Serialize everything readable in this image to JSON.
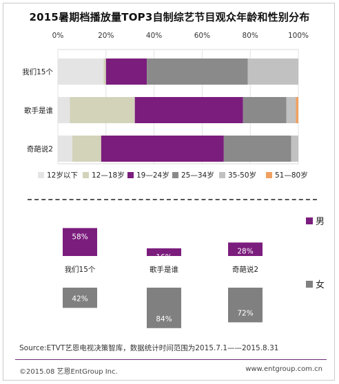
{
  "title": "2015暑期档播放量TOP3自制综艺节目观众年龄和性别分布",
  "colors": {
    "purple": "#7b1d7d",
    "gray": "#808080",
    "age_segments": [
      "#e4e4e4",
      "#d3d3ba",
      "#7b1d7d",
      "#8a8a8a",
      "#c1c1c1",
      "#f0a060"
    ]
  },
  "chart_data": [
    {
      "type": "bar",
      "orientation": "horizontal",
      "stacked": true,
      "percent_stacked": true,
      "x_ticks": [
        "0%",
        "20%",
        "40%",
        "60%",
        "80%",
        "100%"
      ],
      "xlim": [
        0,
        100
      ],
      "grid": true,
      "legend_position": "bottom",
      "categories": [
        "我们15个",
        "歌手是谁",
        "奇葩说2"
      ],
      "series": [
        {
          "name": "12岁以下",
          "values": [
            19,
            5,
            6
          ]
        },
        {
          "name": "12—18岁",
          "values": [
            1,
            27,
            12
          ]
        },
        {
          "name": "19—24岁",
          "values": [
            17,
            45,
            51
          ]
        },
        {
          "name": "25—34岁",
          "values": [
            42,
            18,
            28
          ]
        },
        {
          "name": "35-50岁",
          "values": [
            21,
            4,
            3
          ]
        },
        {
          "name": "51—80岁",
          "values": [
            0,
            1,
            0
          ]
        }
      ]
    },
    {
      "type": "bar",
      "orientation": "vertical",
      "legend_position": "right",
      "categories": [
        "我们15个",
        "歌手是谁",
        "奇葩说2"
      ],
      "series": [
        {
          "name": "男",
          "values": [
            58,
            16,
            28
          ],
          "labels": [
            "58%",
            "16%",
            "28%"
          ]
        },
        {
          "name": "女",
          "values": [
            42,
            84,
            72
          ],
          "labels": [
            "42%",
            "84%",
            "72%"
          ]
        }
      ]
    }
  ],
  "source": "Source:ETVT艺恩电视决策智库，数据统计时间范围为2015.7.1——2015.8.31",
  "copyright": "©2015.08 艺恩EntGroup Inc.",
  "website": "www.entgroup.com.cn"
}
